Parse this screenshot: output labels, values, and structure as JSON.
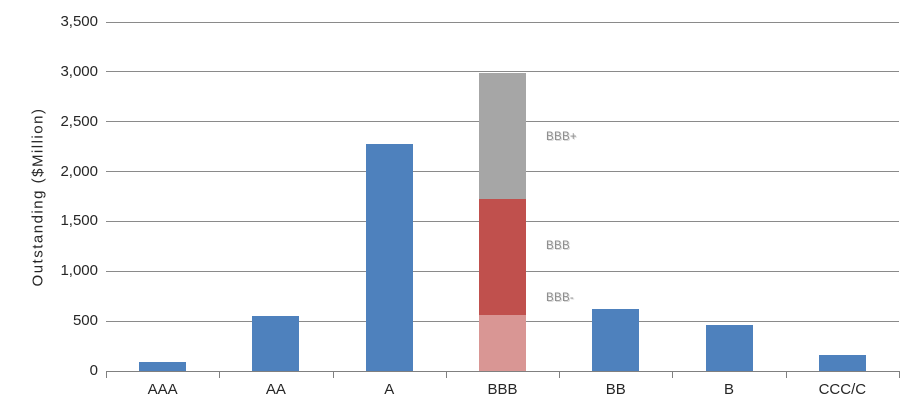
{
  "chart_data": {
    "type": "bar",
    "subtype": "stacked-single-category",
    "title": "",
    "xlabel": "",
    "ylabel": "Outstanding ($Million)",
    "ylim": [
      0,
      3500
    ],
    "grid": true,
    "legend": false,
    "ytick_values": [
      0,
      500,
      1000,
      1500,
      2000,
      2500,
      3000,
      3500
    ],
    "ytick_labels": [
      "0",
      "500",
      "1,000",
      "1,500",
      "2,000",
      "2,500",
      "3,000",
      "3,500"
    ],
    "categories": [
      "AAA",
      "AA",
      "A",
      "BBB",
      "BB",
      "B",
      "CCC/C"
    ],
    "bars": [
      {
        "category": "AAA",
        "segments": [
          {
            "rating": "AAA",
            "value": 90,
            "color": "blue"
          }
        ]
      },
      {
        "category": "AA",
        "segments": [
          {
            "rating": "AA",
            "value": 555,
            "color": "blue"
          }
        ]
      },
      {
        "category": "A",
        "segments": [
          {
            "rating": "A",
            "value": 2280,
            "color": "blue"
          }
        ]
      },
      {
        "category": "BBB",
        "segments": [
          {
            "rating": "BBB-",
            "value": 560,
            "color": "pink"
          },
          {
            "rating": "BBB",
            "value": 1165,
            "color": "red"
          },
          {
            "rating": "BBB+",
            "value": 1265,
            "color": "gray"
          }
        ]
      },
      {
        "category": "BB",
        "segments": [
          {
            "rating": "BB",
            "value": 620,
            "color": "blue"
          }
        ]
      },
      {
        "category": "B",
        "segments": [
          {
            "rating": "B",
            "value": 465,
            "color": "blue"
          }
        ]
      },
      {
        "category": "CCC/C",
        "segments": [
          {
            "rating": "CCC/C",
            "value": 160,
            "color": "blue"
          }
        ]
      }
    ],
    "annotations": [
      {
        "text": "BBB+",
        "category": "BBB",
        "y": 2350,
        "dx": 20
      },
      {
        "text": "BBB",
        "category": "BBB",
        "y": 1250,
        "dx": 20
      },
      {
        "text": "BBB-",
        "category": "BBB",
        "y": 730,
        "dx": 20
      }
    ],
    "colors": {
      "blue": "#4E81BD",
      "red": "#C0504D",
      "pink": "#D99694",
      "gray": "#A6A6A6",
      "gridline": "#8A8A8A",
      "axis": "#808080",
      "text": "#262626",
      "annotation": "#8F8F8F"
    }
  }
}
